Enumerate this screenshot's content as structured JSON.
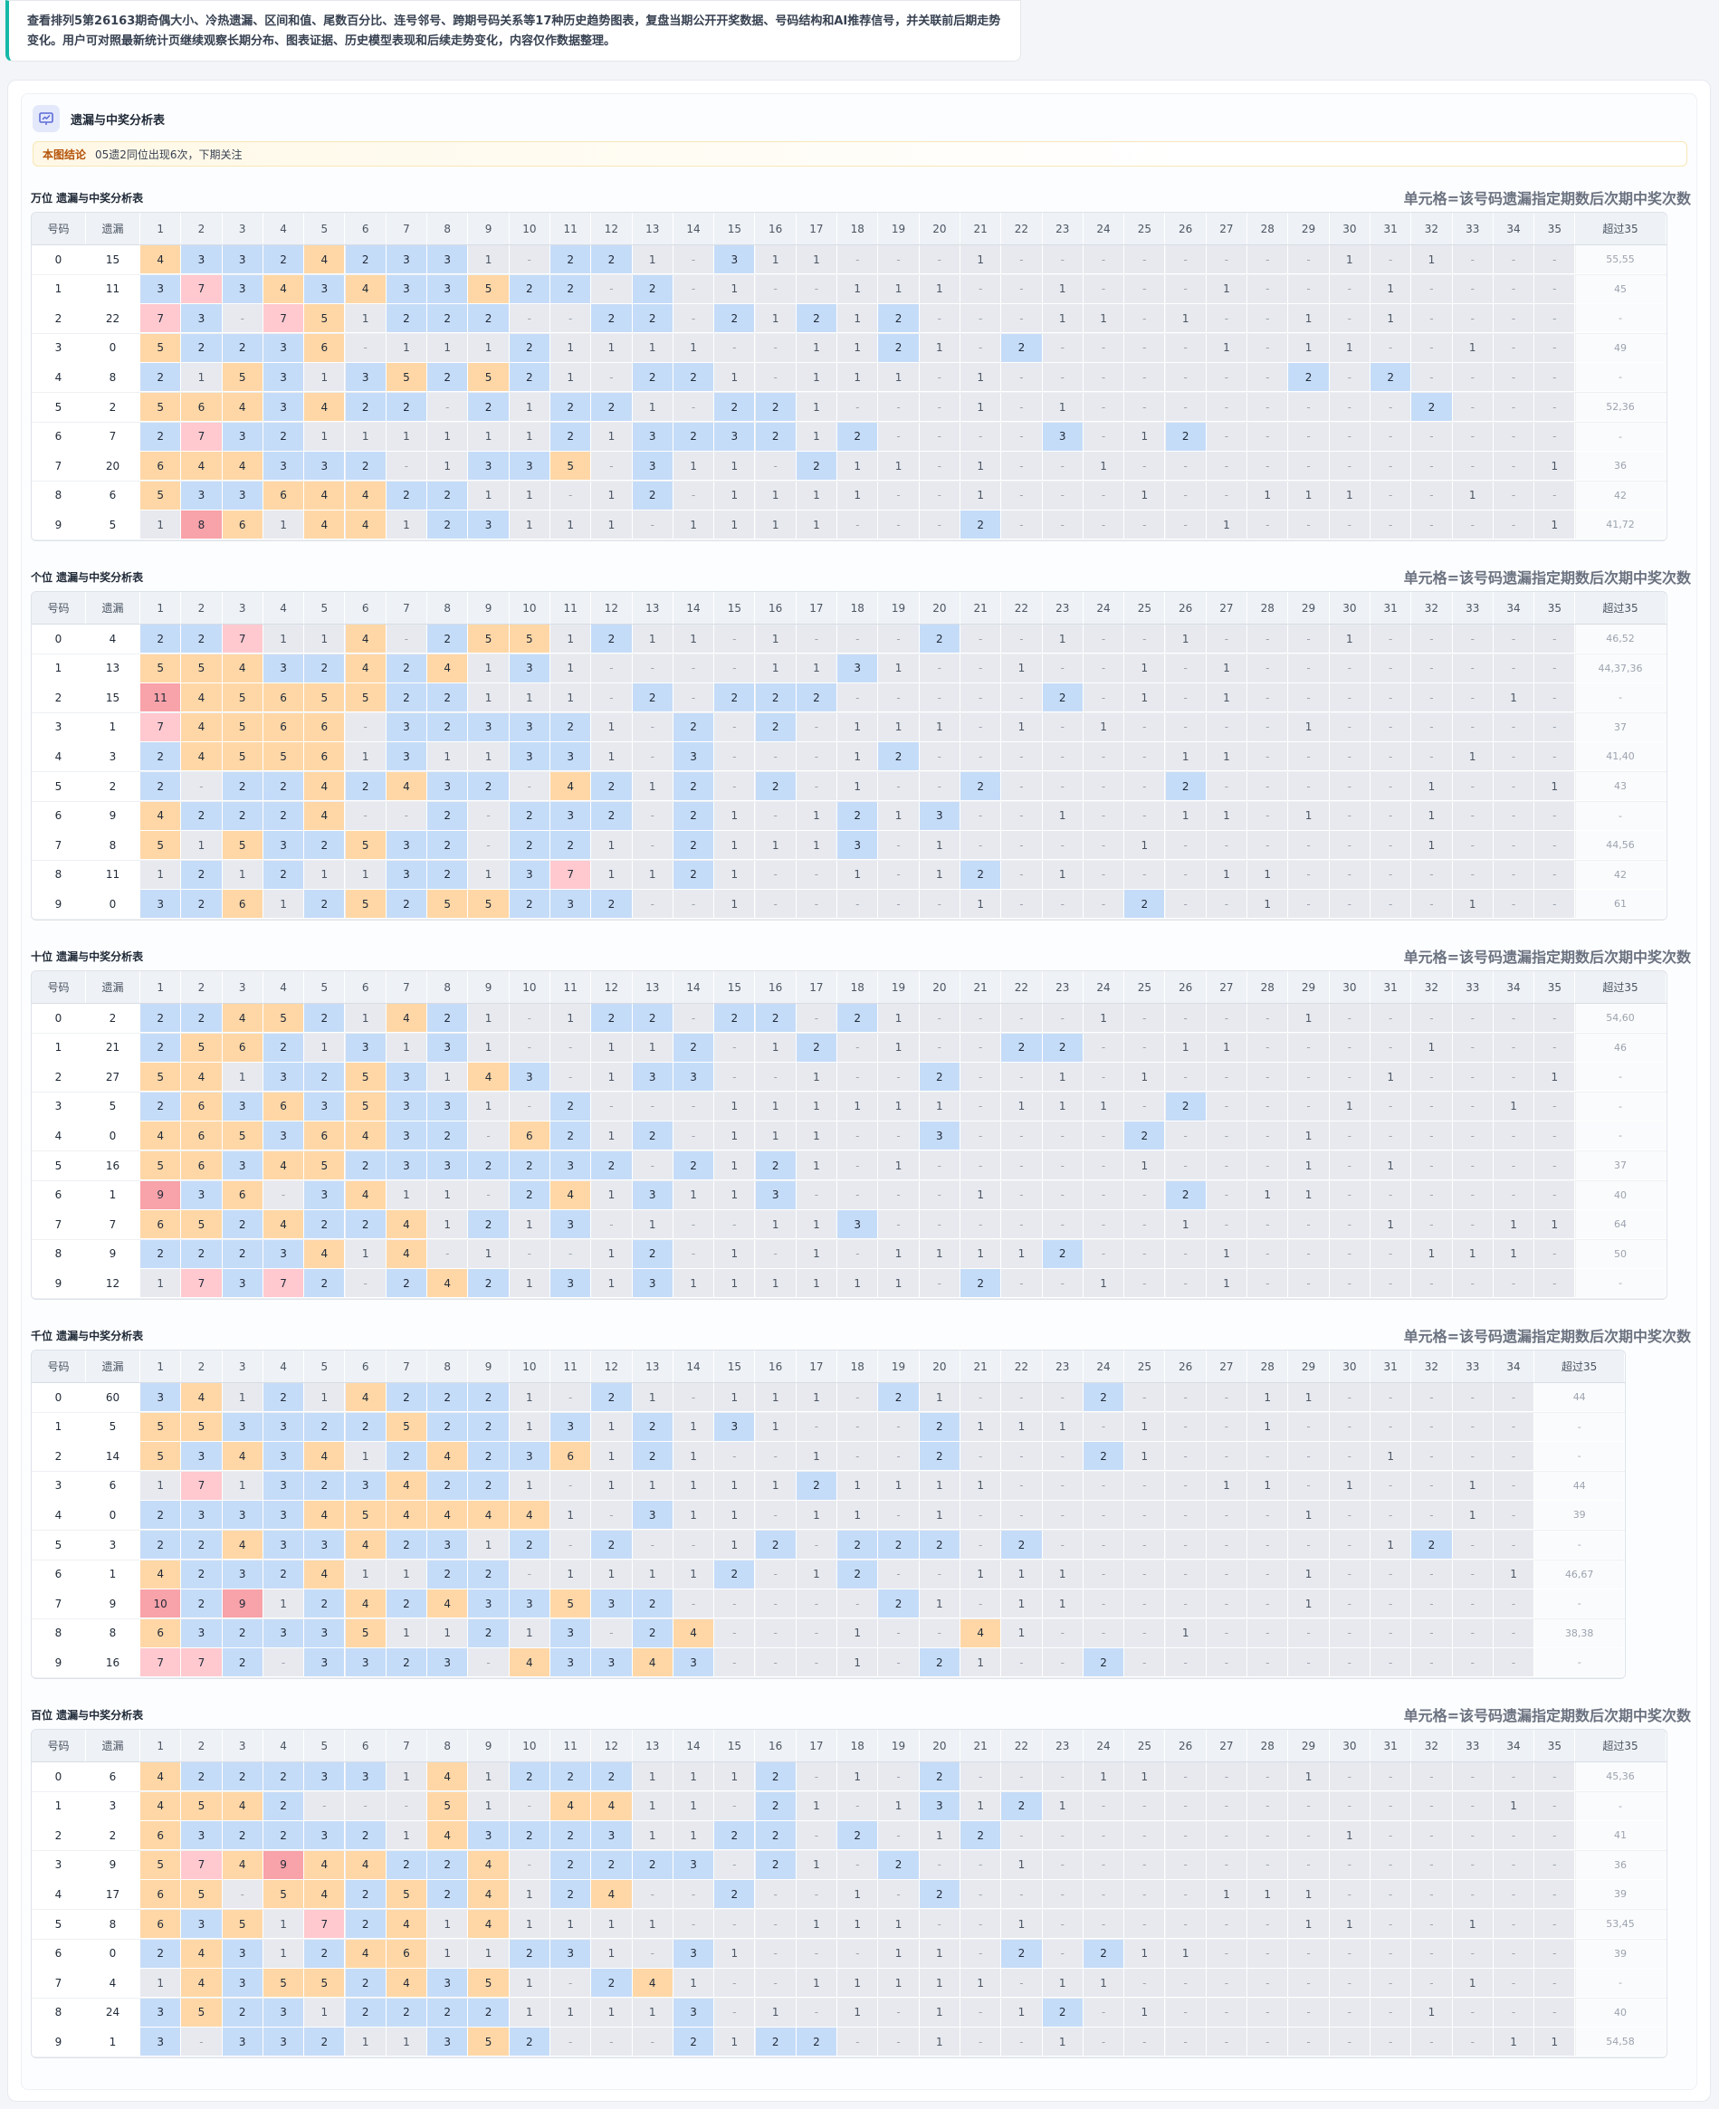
{
  "intro": "查看排列5第26163期奇偶大小、冷热遗漏、区间和值、尾数百分比、连号邻号、跨期号码关系等17种历史趋势图表，复盘当期公开开奖数据、号码结构和AI推荐信号，并关联前后期走势变化。用户可对照最新统计页继续观察长期分布、图表证据、历史模型表现和后续走势变化，内容仅作数据整理。",
  "panel": {
    "title": "遗漏与中奖分析表",
    "conclusion_key": "本图结论",
    "conclusion": "05遗2同位出现6次，下期关注"
  },
  "note": "单元格=该号码遗漏指定期数后次期中奖次数",
  "headers": {
    "num": "号码",
    "miss": "遗漏",
    "excess": "超过35"
  },
  "colors": {
    "empty": "#e7e9ee",
    "blue": "#c5dcf8",
    "orange": "#ffd7a6",
    "pink": "#ffc9cf",
    "red": "#f8a2a9"
  },
  "sections": [
    {
      "title": "万位 遗漏与中奖分析表",
      "cols": 35,
      "rows": [
        {
          "num": "0",
          "miss": "15",
          "cells": "4 3 3 2 4 2 3 3 1 - 2 2 1 - 3 1 1 - - - 1 - - - - - - - - 1 - 1 - - -",
          "excess": "55,55"
        },
        {
          "num": "1",
          "miss": "11",
          "cells": "3 7 3 4 3 4 3 3 5 2 2 - 2 - 1 - - 1 1 1 - - 1 - - - 1 - - - 1 - - - -",
          "excess": "45"
        },
        {
          "num": "2",
          "miss": "22",
          "cells": "7 3 - 7 5 1 2 2 2 - - 2 2 - 2 1 2 1 2 - - - 1 1 - 1 - - 1 - 1 - - - -",
          "excess": "-"
        },
        {
          "num": "3",
          "miss": "0",
          "cells": "5 2 2 3 6 - 1 1 1 2 1 1 1 1 - - 1 1 2 1 - 2 - - - - 1 - 1 1 - - 1 - -",
          "excess": "49"
        },
        {
          "num": "4",
          "miss": "8",
          "cells": "2 1 5 3 1 3 5 2 5 2 1 - 2 2 1 - 1 1 1 - 1 - - - - - - - 2 - 2 - - - -",
          "excess": "-"
        },
        {
          "num": "5",
          "miss": "2",
          "cells": "5 6 4 3 4 2 2 - 2 1 2 2 1 - 2 2 1 - - - 1 - 1 - - - - - - - - 2 - - -",
          "excess": "52,36"
        },
        {
          "num": "6",
          "miss": "7",
          "cells": "2 7 3 2 1 1 1 1 1 1 2 1 3 2 3 2 1 2 - - - - 3 - 1 2 - - - - - - - - -",
          "excess": "-"
        },
        {
          "num": "7",
          "miss": "20",
          "cells": "6 4 4 3 3 2 - 1 3 3 5 - 3 1 1 - 2 1 1 - 1 - - 1 - - - - - - - - - - 1",
          "excess": "36"
        },
        {
          "num": "8",
          "miss": "6",
          "cells": "5 3 3 6 4 4 2 2 1 1 - 1 2 - 1 1 1 1 - - 1 - - - 1 - - 1 1 1 - - 1 - -",
          "excess": "42"
        },
        {
          "num": "9",
          "miss": "5",
          "cells": "1 8 6 1 4 4 1 2 3 1 1 1 - 1 1 1 1 - - - 2 - - - - - 1 - - - - - - - 1",
          "excess": "41,72"
        }
      ]
    },
    {
      "title": "个位 遗漏与中奖分析表",
      "cols": 35,
      "rows": [
        {
          "num": "0",
          "miss": "4",
          "cells": "2 2 7 1 1 4 - 2 5 5 1 2 1 1 - 1 - - - 2 - - 1 - - 1 - - - 1 - - - - -",
          "excess": "46,52"
        },
        {
          "num": "1",
          "miss": "13",
          "cells": "5 5 4 3 2 4 2 4 1 3 1 - - - - 1 1 3 1 - - 1 - - 1 - 1 - - - - - - - -",
          "excess": "44,37,36"
        },
        {
          "num": "2",
          "miss": "15",
          "cells": "11 4 5 6 5 5 2 2 1 1 1 - 2 - 2 2 2 - - - - - 2 - 1 - 1 - - - - - - 1 -",
          "excess": "-"
        },
        {
          "num": "3",
          "miss": "1",
          "cells": "7 4 5 6 6 - 3 2 3 3 2 1 - 2 - 2 - 1 1 1 - 1 - 1 - - - - 1 - - - - - -",
          "excess": "37"
        },
        {
          "num": "4",
          "miss": "3",
          "cells": "2 4 5 5 6 1 3 1 1 3 3 1 - 3 - - - 1 2 - - - - - - 1 1 - - - - - 1 - -",
          "excess": "41,40"
        },
        {
          "num": "5",
          "miss": "2",
          "cells": "2 - 2 2 4 2 4 3 2 - 4 2 1 2 - 2 - 1 - - 2 - - - - 2 - - - - - 1 - - 1",
          "excess": "43"
        },
        {
          "num": "6",
          "miss": "9",
          "cells": "4 2 2 2 4 - - 2 - 2 3 2 - 2 1 - 1 2 1 3 - - 1 - - 1 1 - 1 - - 1 - - -",
          "excess": "-"
        },
        {
          "num": "7",
          "miss": "8",
          "cells": "5 1 5 3 2 5 3 2 - 2 2 1 - 2 1 1 1 3 - 1 - - - - 1 - - - - - - 1 - - -",
          "excess": "44,56"
        },
        {
          "num": "8",
          "miss": "11",
          "cells": "1 2 1 2 1 1 3 2 1 3 7 1 1 2 1 - - 1 - 1 2 - 1 - - - 1 1 - - - - - - -",
          "excess": "42"
        },
        {
          "num": "9",
          "miss": "0",
          "cells": "3 2 6 1 2 5 2 5 5 2 3 2 - - 1 - - - - - 1 - - - 2 - - 1 - - - - 1 - -",
          "excess": "61"
        }
      ]
    },
    {
      "title": "十位 遗漏与中奖分析表",
      "cols": 35,
      "rows": [
        {
          "num": "0",
          "miss": "2",
          "cells": "2 2 4 5 2 1 4 2 1 - 1 2 2 - 2 2 - 2 1 - - - - 1 - - - - 1 - - - - - -",
          "excess": "54,60"
        },
        {
          "num": "1",
          "miss": "21",
          "cells": "2 5 6 2 1 3 1 3 1 - - 1 1 2 - 1 2 - 1 - - 2 2 - - 1 1 - - - - 1 - - -",
          "excess": "46"
        },
        {
          "num": "2",
          "miss": "27",
          "cells": "5 4 1 3 2 5 3 1 4 3 - 1 3 3 - - 1 - - 2 - - 1 - 1 - - - - - 1 - - - 1",
          "excess": "-"
        },
        {
          "num": "3",
          "miss": "5",
          "cells": "2 6 3 6 3 5 3 3 1 - 2 - - - 1 1 1 1 1 1 - 1 1 1 - 2 - - - 1 - - - 1 -",
          "excess": "-"
        },
        {
          "num": "4",
          "miss": "0",
          "cells": "4 6 5 3 6 4 3 2 - 6 2 1 2 - 1 1 1 - - 3 - - - - 2 - - - 1 - - - - - -",
          "excess": "-"
        },
        {
          "num": "5",
          "miss": "16",
          "cells": "5 6 3 4 5 2 3 3 2 2 3 2 - 2 1 2 1 - 1 - - - - - 1 - - - 1 - 1 - - - -",
          "excess": "37"
        },
        {
          "num": "6",
          "miss": "1",
          "cells": "9 3 6 - 3 4 1 1 - 2 4 1 3 1 1 3 - - - - 1 - - - - 2 - 1 1 - - - - - -",
          "excess": "40"
        },
        {
          "num": "7",
          "miss": "7",
          "cells": "6 5 2 4 2 2 4 1 2 1 3 - 1 - - 1 1 3 - - - - - - - 1 - - - - 1 - - 1 1",
          "excess": "64"
        },
        {
          "num": "8",
          "miss": "9",
          "cells": "2 2 2 3 4 1 4 - 1 - - 1 2 - 1 - 1 - 1 1 1 1 2 - - - 1 - - - - 1 1 1 -",
          "excess": "50"
        },
        {
          "num": "9",
          "miss": "12",
          "cells": "1 7 3 7 2 - 2 4 2 1 3 1 3 1 1 1 1 1 1 - 2 - - 1 - - 1 - - - - - - - -",
          "excess": "-"
        }
      ]
    },
    {
      "title": "千位 遗漏与中奖分析表",
      "cols": 34,
      "rows": [
        {
          "num": "0",
          "miss": "60",
          "cells": "3 4 1 2 1 4 2 2 2 1 - 2 1 - 1 1 1 - 2 1 - - - 2 - - - 1 1 - - - - -",
          "excess": "44"
        },
        {
          "num": "1",
          "miss": "5",
          "cells": "5 5 3 3 2 2 5 2 2 1 3 1 2 1 3 1 - - - 2 1 1 1 - 1 - - 1 - - - - - -",
          "excess": "-"
        },
        {
          "num": "2",
          "miss": "14",
          "cells": "5 3 4 3 4 1 2 4 2 3 6 1 2 1 - - 1 - - 2 - - - 2 1 - - - - - 1 - - -",
          "excess": "-"
        },
        {
          "num": "3",
          "miss": "6",
          "cells": "1 7 1 3 2 3 4 2 2 1 - 1 1 1 1 1 2 1 1 1 1 - - - - - 1 1 - 1 - - 1 -",
          "excess": "44"
        },
        {
          "num": "4",
          "miss": "0",
          "cells": "2 3 3 3 4 5 4 4 4 4 1 - 3 1 1 - 1 1 - 1 - - - - - - - - 1 - - - 1 -",
          "excess": "39"
        },
        {
          "num": "5",
          "miss": "3",
          "cells": "2 2 4 3 3 4 2 3 1 2 - 2 - - 1 2 - 2 2 2 - 2 - - - - - - - - 1 2 - -",
          "excess": "-"
        },
        {
          "num": "6",
          "miss": "1",
          "cells": "4 2 3 2 4 1 1 2 2 - 1 1 1 1 2 - 1 2 - - 1 1 1 - - - - - 1 - - - - 1",
          "excess": "46,67"
        },
        {
          "num": "7",
          "miss": "9",
          "cells": "10 2 9 1 2 4 2 4 3 3 5 3 2 - - - - - 2 1 - 1 1 - - - - - 1 - - - - -",
          "excess": "-"
        },
        {
          "num": "8",
          "miss": "8",
          "cells": "6 3 2 3 3 5 1 1 2 1 3 - 2 4 - - - 1 - - 4 1 - - - 1 - - - - - - - -",
          "excess": "38,38"
        },
        {
          "num": "9",
          "miss": "16",
          "cells": "7 7 2 - 3 3 2 3 - 4 3 3 4 3 - - - 1 - 2 1 - - 2 - - - - - - - - - -",
          "excess": "-"
        }
      ]
    },
    {
      "title": "百位 遗漏与中奖分析表",
      "cols": 35,
      "rows": [
        {
          "num": "0",
          "miss": "6",
          "cells": "4 2 2 2 3 3 1 4 1 2 2 2 1 1 1 2 - 1 - 2 - - - 1 1 - - - 1 - - - - - -",
          "excess": "45,36"
        },
        {
          "num": "1",
          "miss": "3",
          "cells": "4 5 4 2 - - - 5 1 - 4 4 1 1 - 2 1 - 1 3 1 2 1 - - - - - - - - - - 1 -",
          "excess": "-"
        },
        {
          "num": "2",
          "miss": "2",
          "cells": "6 3 2 2 3 2 1 4 3 2 2 3 1 1 2 2 - 2 - 1 2 - - - - - - - - 1 - - - - -",
          "excess": "41"
        },
        {
          "num": "3",
          "miss": "9",
          "cells": "5 7 4 9 4 4 2 2 4 - 2 2 2 3 - 2 1 - 2 - - 1 - - - - - - - - - - - - -",
          "excess": "36"
        },
        {
          "num": "4",
          "miss": "17",
          "cells": "6 5 - 5 4 2 5 2 4 1 2 4 - - 2 - - 1 - 2 - - - - - - 1 1 1 - - - - - -",
          "excess": "39"
        },
        {
          "num": "5",
          "miss": "8",
          "cells": "6 3 5 1 7 2 4 1 4 1 1 1 1 - - - 1 1 1 - - 1 - - - - - - 1 1 - - 1 - -",
          "excess": "53,45"
        },
        {
          "num": "6",
          "miss": "0",
          "cells": "2 4 3 1 2 4 6 1 1 2 3 1 - 3 1 - - - 1 1 - 2 - 2 1 1 - - - - - - - - -",
          "excess": "39"
        },
        {
          "num": "7",
          "miss": "4",
          "cells": "1 4 3 5 5 2 4 3 5 1 - 2 4 1 - - 1 1 1 1 1 - 1 1 - - - - - - - - 1 - -",
          "excess": "-"
        },
        {
          "num": "8",
          "miss": "24",
          "cells": "3 5 2 3 1 2 2 2 2 1 1 1 1 3 - 1 - 1 - 1 - 1 2 - 1 - - - - - - 1 - - -",
          "excess": "40"
        },
        {
          "num": "9",
          "miss": "1",
          "cells": "3 - 3 3 2 1 1 3 5 2 - - - 2 1 2 2 - - 1 - - 1 - - - - - - - - - - 1 1",
          "excess": "54,58"
        }
      ]
    }
  ]
}
